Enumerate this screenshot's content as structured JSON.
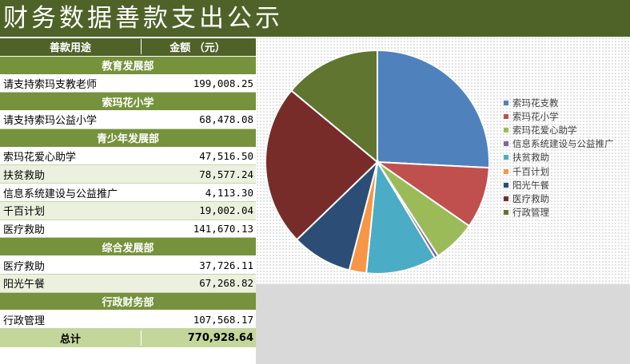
{
  "page_title": "财务数据善款支出公示",
  "table": {
    "header": {
      "purpose": "善款用途",
      "amount": "金额 （元）"
    },
    "rows": [
      {
        "kind": "section",
        "label": "教育发展部"
      },
      {
        "kind": "item",
        "label": "请支持索玛支教老师",
        "amount": "199,008.25"
      },
      {
        "kind": "section",
        "label": "索玛花小学"
      },
      {
        "kind": "item",
        "label": "请支持索玛公益小学",
        "amount": "68,478.08"
      },
      {
        "kind": "section",
        "label": "青少年发展部"
      },
      {
        "kind": "item",
        "label": "索玛花爱心助学",
        "amount": "47,516.50"
      },
      {
        "kind": "item",
        "label": "扶贫救助",
        "amount": "78,577.24"
      },
      {
        "kind": "item",
        "label": "信息系统建设与公益推广",
        "amount": "4,113.30"
      },
      {
        "kind": "item",
        "label": "千百计划",
        "amount": "19,002.04"
      },
      {
        "kind": "item",
        "label": "医疗救助",
        "amount": "141,670.13"
      },
      {
        "kind": "section",
        "label": "综合发展部"
      },
      {
        "kind": "item",
        "label": "医疗救助",
        "amount": "37,726.11"
      },
      {
        "kind": "item",
        "label": "阳光午餐",
        "amount": "67,268.82"
      },
      {
        "kind": "section",
        "label": "行政财务部"
      },
      {
        "kind": "item",
        "label": "行政管理",
        "amount": "107,568.17"
      }
    ],
    "total": {
      "label": "总计",
      "amount": "770,928.64"
    }
  },
  "chart_data": {
    "type": "pie",
    "title": "",
    "legend_position": "right",
    "series": [
      {
        "name": "索玛花支教",
        "value": 199008.25,
        "color": "#4f81bd"
      },
      {
        "name": "索玛花小学",
        "value": 68478.08,
        "color": "#c0504d"
      },
      {
        "name": "索玛花爱心助学",
        "value": 47516.5,
        "color": "#9bbb59"
      },
      {
        "name": "信息系统建设与公益推广",
        "value": 4113.3,
        "color": "#8064a2"
      },
      {
        "name": "扶贫救助",
        "value": 78577.24,
        "color": "#4bacc6"
      },
      {
        "name": "千百计划",
        "value": 19002.04,
        "color": "#f79646"
      },
      {
        "name": "阳光午餐",
        "value": 67268.82,
        "color": "#2c4d75"
      },
      {
        "name": "医疗救助",
        "value": 179396.24,
        "color": "#772c2a"
      },
      {
        "name": "行政管理",
        "value": 107568.17,
        "color": "#5f7530"
      }
    ]
  }
}
